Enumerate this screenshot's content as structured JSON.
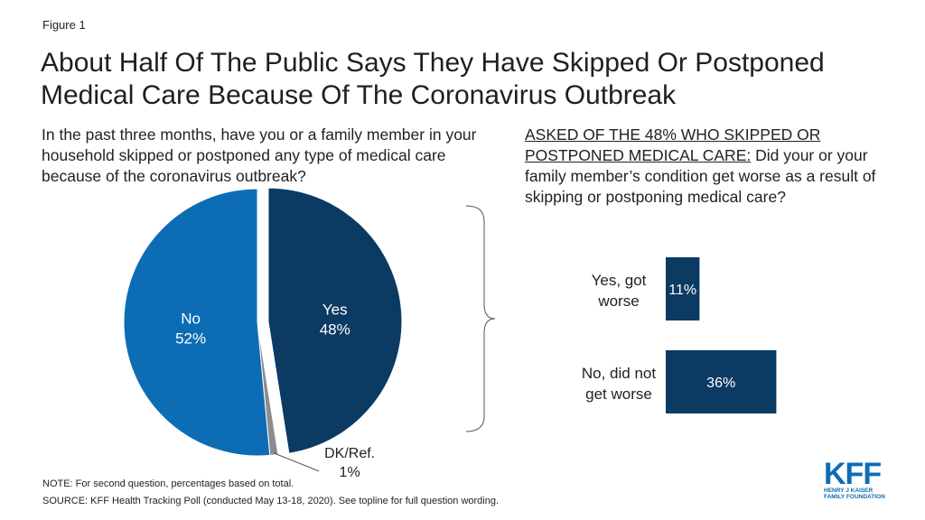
{
  "figure_label": "Figure 1",
  "title": "About Half Of The Public Says They Have Skipped Or Postponed Medical Care Because Of The Coronavirus Outbreak",
  "question1": "In the past three months, have you or a family member in your household skipped or postponed any type of medical care because of the coronavirus outbreak?",
  "question2_underlined": "ASKED OF THE 48% WHO SKIPPED OR POSTPONED MEDICAL CARE:",
  "question2_rest": " Did your or your family member’s condition get worse as a result of skipping or postponing medical care?",
  "note": "NOTE: For second question, percentages based on total.",
  "source": "SOURCE: KFF Health Tracking Poll (conducted May 13-18, 2020). See topline for full question wording.",
  "logo": {
    "text": "KFF",
    "line1": "HENRY J KAISER",
    "line2": "FAMILY FOUNDATION"
  },
  "chart_data": [
    {
      "type": "pie",
      "slices": [
        {
          "label": "Yes",
          "value": 48,
          "value_label": "48%",
          "color": "#0b3a63"
        },
        {
          "label": "DK/Ref.",
          "value": 1,
          "value_label": "1%",
          "color": "#8c8c8c"
        },
        {
          "label": "No",
          "value": 52,
          "value_label": "52%",
          "color": "#0c6db5"
        }
      ]
    },
    {
      "type": "bar",
      "orientation": "horizontal",
      "categories": [
        "Yes, got worse",
        "No, did not get worse"
      ],
      "category_lines": [
        [
          "Yes, got",
          "worse"
        ],
        [
          "No, did not",
          "get worse"
        ]
      ],
      "values": [
        11,
        36
      ],
      "value_labels": [
        "11%",
        "36%"
      ],
      "color": "#0b3a63"
    }
  ]
}
